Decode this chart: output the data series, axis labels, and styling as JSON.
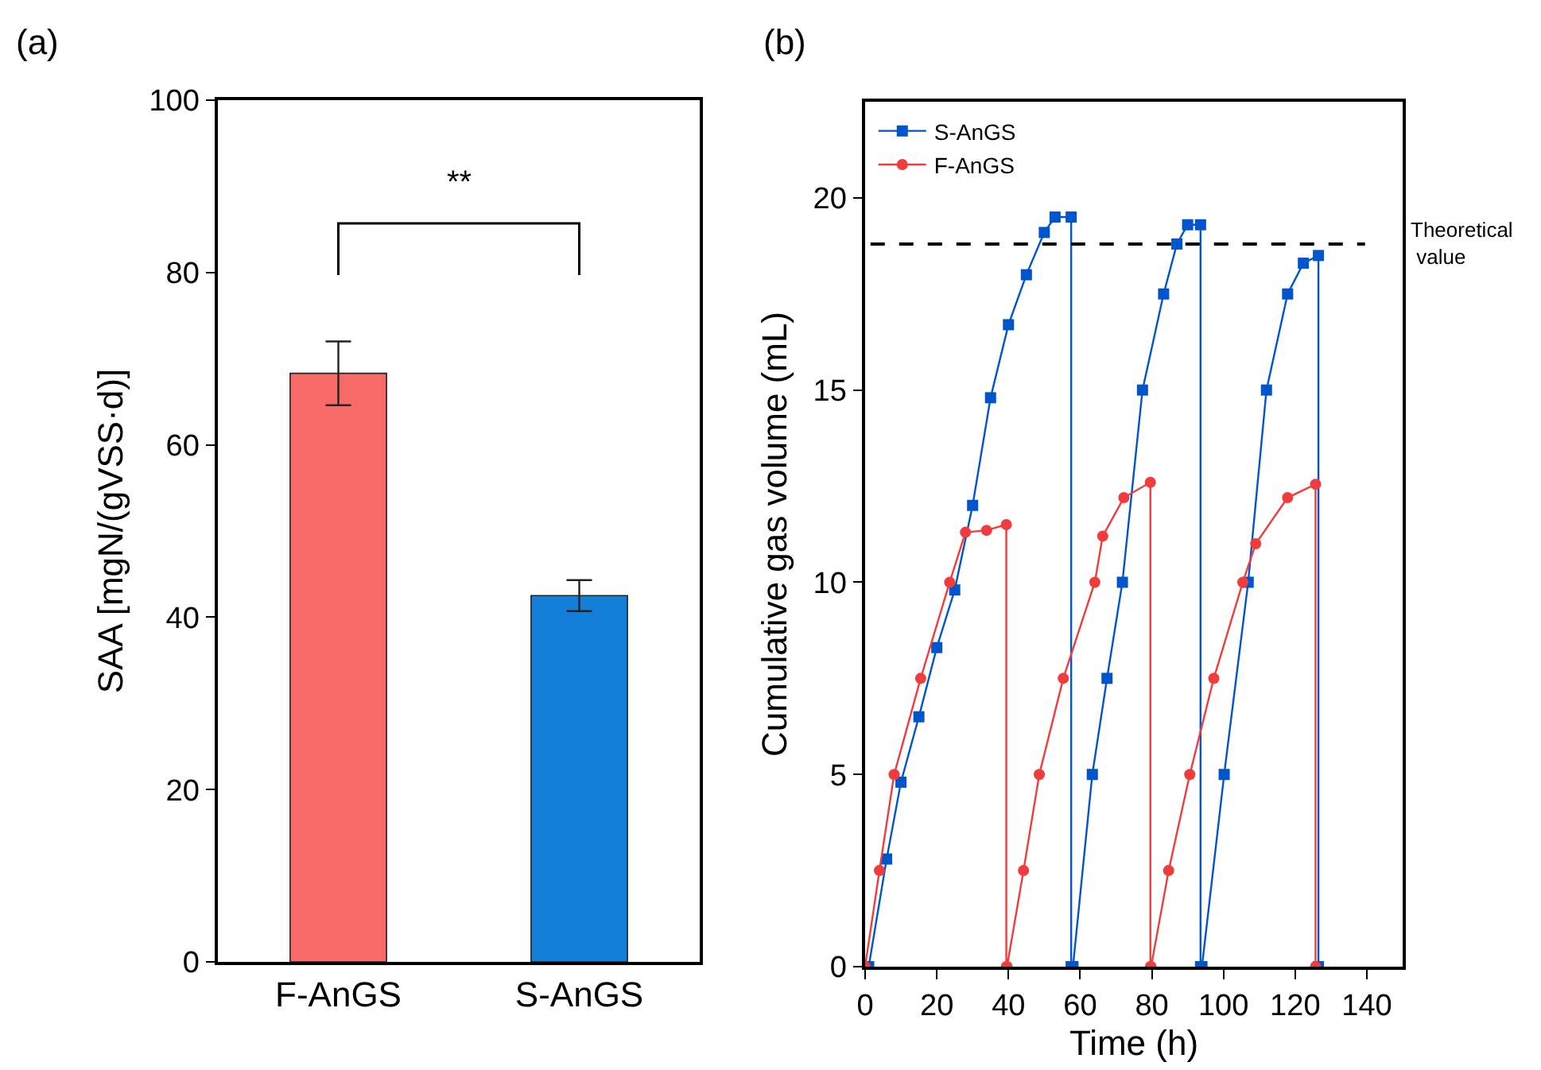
{
  "chart_data": [
    {
      "type": "bar",
      "ylabel": "SAA [mgN/(gVSS·d)]",
      "categories": [
        "F-AnGS",
        "S-AnGS"
      ],
      "values": [
        68.3,
        42.5
      ],
      "errors": [
        3.7,
        1.8
      ],
      "colors": [
        "#f76a65",
        "#137fd9"
      ],
      "ylim": [
        0,
        100
      ],
      "yticks": [
        0,
        20,
        40,
        60,
        80,
        100
      ],
      "grid": false,
      "legend": false,
      "annotations": [
        "(a)",
        "**"
      ]
    },
    {
      "type": "line",
      "xlabel": "Time (h)",
      "ylabel": "Cumulative gas volume (mL)",
      "xlim": [
        0,
        150
      ],
      "xticks": [
        0,
        20,
        40,
        60,
        80,
        100,
        120,
        140
      ],
      "ylim": [
        0,
        22.5
      ],
      "yticks": [
        0,
        5,
        10,
        15,
        20
      ],
      "grid": false,
      "legend": "top left",
      "series": [
        {
          "name": "S-AnGS",
          "color": "#0055cc",
          "marker": "square",
          "x": [
            1,
            6,
            10,
            15,
            20,
            25,
            30,
            35,
            40,
            45,
            50,
            53,
            57.5,
            57.5,
            58,
            63.4,
            67.5,
            71.8,
            77.4,
            83.3,
            87,
            90,
            93.6,
            93.6,
            94,
            100.2,
            106.9,
            112,
            117.9,
            122.3,
            126.5,
            126.5
          ],
          "values": [
            0,
            2.8,
            4.8,
            6.5,
            8.3,
            9.8,
            12,
            14.8,
            16.7,
            18,
            19.1,
            19.5,
            19.5,
            0,
            0,
            5,
            7.5,
            10,
            15,
            17.5,
            18.8,
            19.3,
            19.3,
            0,
            0,
            5,
            10,
            15,
            17.5,
            18.3,
            18.5,
            0
          ]
        },
        {
          "name": "F-AnGS",
          "color": "#f03c3c",
          "marker": "circle",
          "x": [
            0,
            4,
            8.1,
            15.5,
            23.6,
            28,
            33.9,
            39.4,
            39.4,
            39.6,
            44.2,
            48.6,
            55.3,
            64.1,
            66.3,
            72.2,
            79.6,
            79.6,
            79.8,
            84.7,
            90.6,
            97.3,
            105.4,
            109,
            117.9,
            125.7,
            125.7
          ],
          "values": [
            0,
            2.5,
            5,
            7.5,
            10,
            11.3,
            11.35,
            11.5,
            0,
            0,
            2.5,
            5,
            7.5,
            10,
            11.2,
            12.2,
            12.6,
            0,
            0,
            2.5,
            5,
            7.5,
            10,
            11,
            12.2,
            12.55,
            0
          ]
        }
      ],
      "ref_lines": [
        {
          "axis": "y",
          "value": 18.8,
          "label": "Theoretical value",
          "color": "#000000",
          "line_style": "dashed"
        }
      ],
      "annotations": [
        "(b)"
      ]
    }
  ]
}
